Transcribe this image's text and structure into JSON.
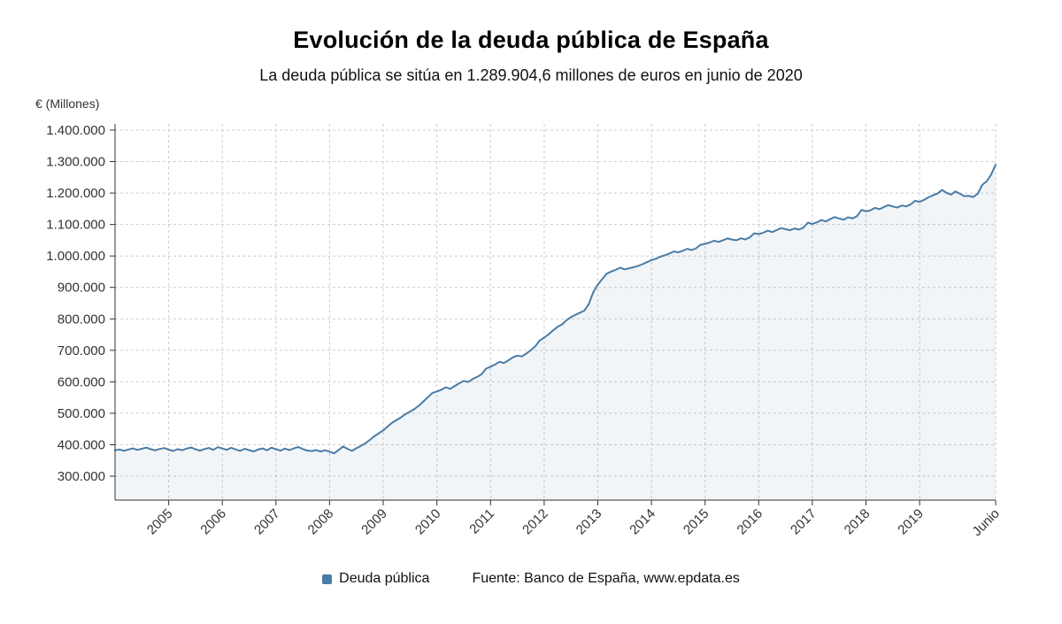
{
  "header": {
    "title": "Evolución de la deuda pública de España",
    "subtitle": "La deuda pública se sitúa en 1.289.904,6 millones de euros en junio de 2020"
  },
  "legend": {
    "series_label": "Deuda pública",
    "source_label": "Fuente: Banco de España, www.epdata.es"
  },
  "chart_data": {
    "type": "area",
    "title": "Evolución de la deuda pública de España",
    "subtitle": "La deuda pública se sitúa en 1.289.904,6 millones de euros en junio de 2020",
    "ylabel": "€ (Millones)",
    "xlabel": "",
    "ylim": [
      300000,
      1400000
    ],
    "grid": "dashed",
    "legend_position": "bottom",
    "colors": {
      "line": "#4a7ca6",
      "area_fill": "rgba(74,124,166,0.08)"
    },
    "y_ticks": [
      {
        "value": 300000,
        "label": "300.000"
      },
      {
        "value": 400000,
        "label": "400.000"
      },
      {
        "value": 500000,
        "label": "500.000"
      },
      {
        "value": 600000,
        "label": "600.000"
      },
      {
        "value": 700000,
        "label": "700.000"
      },
      {
        "value": 800000,
        "label": "800.000"
      },
      {
        "value": 900000,
        "label": "900.000"
      },
      {
        "value": 1000000,
        "label": "1.000.000"
      },
      {
        "value": 1100000,
        "label": "1.100.000"
      },
      {
        "value": 1200000,
        "label": "1.200.000"
      },
      {
        "value": 1300000,
        "label": "1.300.000"
      },
      {
        "value": 1400000,
        "label": "1.400.000"
      }
    ],
    "x_ticks": [
      {
        "index": 12,
        "label": "2005"
      },
      {
        "index": 24,
        "label": "2006"
      },
      {
        "index": 36,
        "label": "2007"
      },
      {
        "index": 48,
        "label": "2008"
      },
      {
        "index": 60,
        "label": "2009"
      },
      {
        "index": 72,
        "label": "2010"
      },
      {
        "index": 84,
        "label": "2011"
      },
      {
        "index": 96,
        "label": "2012"
      },
      {
        "index": 108,
        "label": "2013"
      },
      {
        "index": 120,
        "label": "2014"
      },
      {
        "index": 132,
        "label": "2015"
      },
      {
        "index": 144,
        "label": "2016"
      },
      {
        "index": 156,
        "label": "2017"
      },
      {
        "index": 168,
        "label": "2018"
      },
      {
        "index": 180,
        "label": "2019"
      },
      {
        "index": 197,
        "label": "Junio"
      }
    ],
    "x_start": "2004-01",
    "x_end": "2020-06",
    "x_frequency": "monthly",
    "final_point": {
      "label": "junio de 2020",
      "value": 1289904.6
    },
    "series": [
      {
        "name": "Deuda pública",
        "color": "#4a7ca6",
        "values": [
          382400,
          385100,
          380700,
          384900,
          388200,
          383600,
          387300,
          390800,
          385900,
          382100,
          386700,
          389400,
          384500,
          380200,
          386100,
          382400,
          387800,
          391200,
          385600,
          380900,
          386300,
          389700,
          383900,
          392200,
          388400,
          383800,
          390300,
          385100,
          380600,
          387200,
          382700,
          378900,
          384800,
          388200,
          382500,
          390600,
          385900,
          381300,
          387700,
          382900,
          388400,
          392800,
          386200,
          381600,
          379900,
          383100,
          378400,
          382300,
          377800,
          372500,
          382900,
          394400,
          386800,
          380500,
          388900,
          396200,
          404600,
          415400,
          426800,
          436300,
          445700,
          458500,
          469900,
          478600,
          487200,
          497800,
          505300,
          513800,
          524500,
          537700,
          551200,
          564600,
          569300,
          574900,
          582400,
          577800,
          586600,
          595300,
          602700,
          599400,
          608800,
          615500,
          624200,
          641900,
          648100,
          654700,
          663400,
          659900,
          668300,
          677800,
          683200,
          680600,
          689900,
          700300,
          712800,
          731200,
          740600,
          750900,
          763300,
          774600,
          782400,
          795800,
          805500,
          812900,
          819600,
          826300,
          847700,
          885300,
          909200,
          926600,
          943800,
          950300,
          955700,
          962900,
          957400,
          960800,
          964100,
          968500,
          973900,
          980300,
          986700,
          991200,
          997800,
          1002300,
          1007700,
          1014400,
          1011800,
          1016200,
          1022600,
          1018900,
          1024300,
          1035700,
          1038200,
          1042800,
          1048300,
          1044700,
          1050100,
          1055600,
          1052200,
          1049800,
          1056100,
          1052600,
          1058900,
          1072200,
          1069400,
          1073800,
          1080300,
          1075900,
          1082200,
          1088700,
          1085100,
          1081800,
          1087400,
          1083900,
          1090200,
          1106100,
          1101600,
          1106900,
          1114300,
          1109800,
          1117200,
          1123600,
          1118900,
          1115400,
          1122800,
          1119300,
          1126700,
          1146300,
          1141800,
          1145200,
          1152600,
          1148900,
          1155300,
          1161700,
          1157100,
          1153800,
          1160200,
          1157700,
          1164100,
          1175400,
          1171800,
          1178200,
          1186600,
          1192900,
          1198300,
          1209700,
          1201100,
          1194800,
          1205200,
          1197700,
          1190100,
          1190900,
          1187300,
          1197600,
          1225900,
          1237200,
          1258400,
          1289904.6
        ]
      }
    ]
  }
}
